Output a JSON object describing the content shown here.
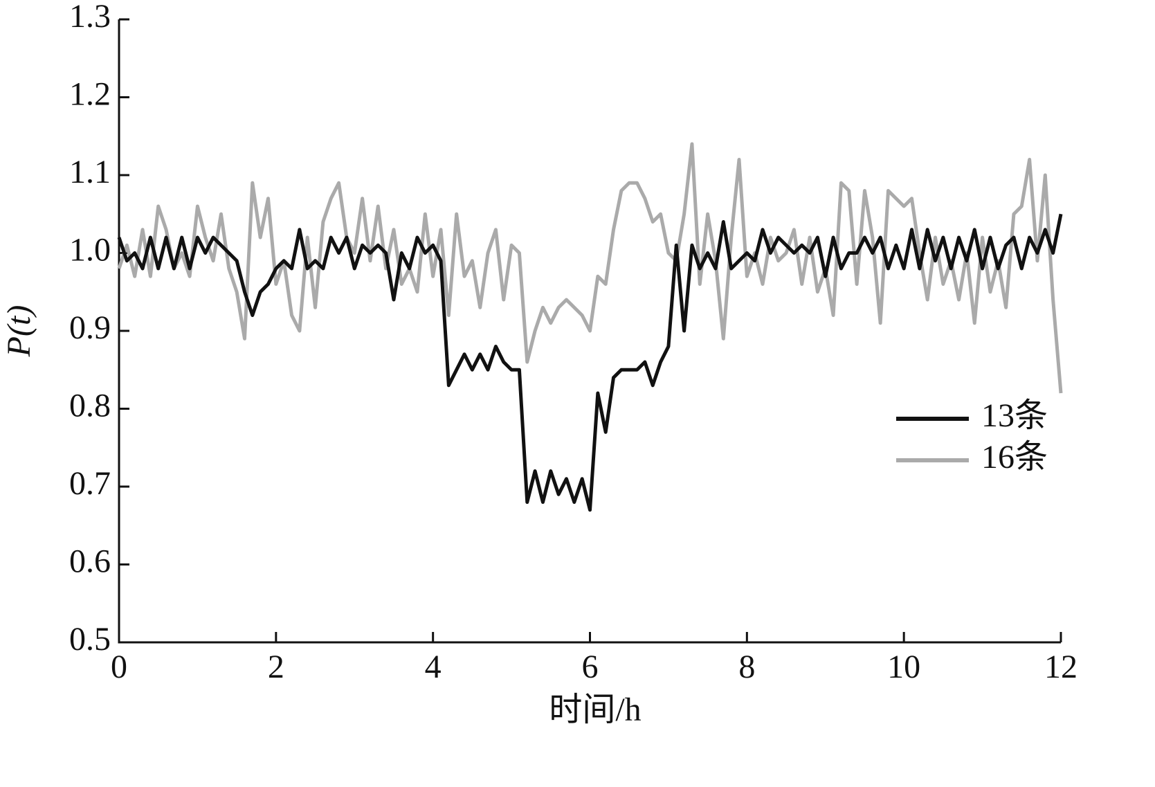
{
  "chart_data": {
    "type": "line",
    "xlabel": "时间/h",
    "ylabel": "P(t)",
    "x": [
      0,
      0.1,
      0.2,
      0.3,
      0.4,
      0.5,
      0.6,
      0.7,
      0.8,
      0.9,
      1,
      1.1,
      1.2,
      1.3,
      1.4,
      1.5,
      1.6,
      1.7,
      1.8,
      1.9,
      2,
      2.1,
      2.2,
      2.3,
      2.4,
      2.5,
      2.6,
      2.7,
      2.8,
      2.9,
      3,
      3.1,
      3.2,
      3.3,
      3.4,
      3.5,
      3.6,
      3.7,
      3.8,
      3.9,
      4,
      4.1,
      4.2,
      4.3,
      4.4,
      4.5,
      4.6,
      4.7,
      4.8,
      4.9,
      5,
      5.1,
      5.2,
      5.3,
      5.4,
      5.5,
      5.6,
      5.7,
      5.8,
      5.9,
      6,
      6.1,
      6.2,
      6.3,
      6.4,
      6.5,
      6.6,
      6.7,
      6.8,
      6.9,
      7,
      7.1,
      7.2,
      7.3,
      7.4,
      7.5,
      7.6,
      7.7,
      7.8,
      7.9,
      8,
      8.1,
      8.2,
      8.3,
      8.4,
      8.5,
      8.6,
      8.7,
      8.8,
      8.9,
      9,
      9.1,
      9.2,
      9.3,
      9.4,
      9.5,
      9.6,
      9.7,
      9.8,
      9.9,
      10,
      10.1,
      10.2,
      10.3,
      10.4,
      10.5,
      10.6,
      10.7,
      10.8,
      10.9,
      11,
      11.1,
      11.2,
      11.3,
      11.4,
      11.5,
      11.6,
      11.7,
      11.8,
      11.9,
      12
    ],
    "series": [
      {
        "name": "16条",
        "color": "#aaaaaa",
        "values": [
          0.98,
          1.01,
          0.97,
          1.03,
          0.97,
          1.06,
          1.03,
          0.98,
          1.0,
          0.97,
          1.06,
          1.02,
          0.99,
          1.05,
          0.98,
          0.95,
          0.89,
          1.09,
          1.02,
          1.07,
          0.96,
          0.99,
          0.92,
          0.9,
          1.02,
          0.93,
          1.04,
          1.07,
          1.09,
          1.02,
          1.0,
          1.07,
          0.99,
          1.06,
          0.98,
          1.03,
          0.96,
          0.98,
          0.95,
          1.05,
          0.97,
          1.03,
          0.92,
          1.05,
          0.97,
          0.99,
          0.93,
          1.0,
          1.03,
          0.94,
          1.01,
          1.0,
          0.86,
          0.9,
          0.93,
          0.91,
          0.93,
          0.94,
          0.93,
          0.92,
          0.9,
          0.97,
          0.96,
          1.03,
          1.08,
          1.09,
          1.09,
          1.07,
          1.04,
          1.05,
          1.0,
          0.99,
          1.05,
          1.14,
          0.96,
          1.05,
          0.99,
          0.89,
          1.02,
          1.12,
          0.97,
          1.0,
          0.96,
          1.02,
          0.99,
          1.0,
          1.03,
          0.96,
          1.02,
          0.95,
          0.98,
          0.92,
          1.09,
          1.08,
          0.96,
          1.08,
          1.02,
          0.91,
          1.08,
          1.07,
          1.06,
          1.07,
          1.0,
          0.94,
          1.02,
          0.96,
          0.99,
          0.94,
          1.0,
          0.91,
          1.02,
          0.95,
          0.99,
          0.93,
          1.05,
          1.06,
          1.12,
          0.99,
          1.1,
          0.94,
          0.82
        ]
      },
      {
        "name": "13条",
        "color": "#111111",
        "values": [
          1.02,
          0.99,
          1.0,
          0.98,
          1.02,
          0.98,
          1.02,
          0.98,
          1.02,
          0.98,
          1.02,
          1.0,
          1.02,
          1.01,
          1.0,
          0.99,
          0.95,
          0.92,
          0.95,
          0.96,
          0.98,
          0.99,
          0.98,
          1.03,
          0.98,
          0.99,
          0.98,
          1.02,
          1.0,
          1.02,
          0.98,
          1.01,
          1.0,
          1.01,
          1.0,
          0.94,
          1.0,
          0.98,
          1.02,
          1.0,
          1.01,
          0.99,
          0.83,
          0.85,
          0.87,
          0.85,
          0.87,
          0.85,
          0.88,
          0.86,
          0.85,
          0.85,
          0.68,
          0.72,
          0.68,
          0.72,
          0.69,
          0.71,
          0.68,
          0.71,
          0.67,
          0.82,
          0.77,
          0.84,
          0.85,
          0.85,
          0.85,
          0.86,
          0.83,
          0.86,
          0.88,
          1.01,
          0.9,
          1.01,
          0.98,
          1.0,
          0.98,
          1.04,
          0.98,
          0.99,
          1.0,
          0.99,
          1.03,
          1.0,
          1.02,
          1.01,
          1.0,
          1.01,
          1.0,
          1.02,
          0.97,
          1.02,
          0.98,
          1.0,
          1.0,
          1.02,
          1.0,
          1.02,
          0.98,
          1.01,
          0.98,
          1.03,
          0.98,
          1.03,
          0.99,
          1.02,
          0.98,
          1.02,
          0.99,
          1.03,
          0.98,
          1.02,
          0.98,
          1.01,
          1.02,
          0.98,
          1.02,
          1.0,
          1.03,
          1.0,
          1.05
        ]
      }
    ],
    "xlim": [
      0,
      12
    ],
    "xticks": [
      0,
      2,
      4,
      6,
      8,
      10,
      12
    ],
    "ylim": [
      0.5,
      1.3
    ],
    "yticks": [
      0.5,
      0.6,
      0.7,
      0.8,
      0.9,
      {
        "value": 1.0,
        "label": "1.0"
      },
      1.1,
      1.2,
      1.3
    ],
    "grid": false,
    "legend": "right"
  }
}
